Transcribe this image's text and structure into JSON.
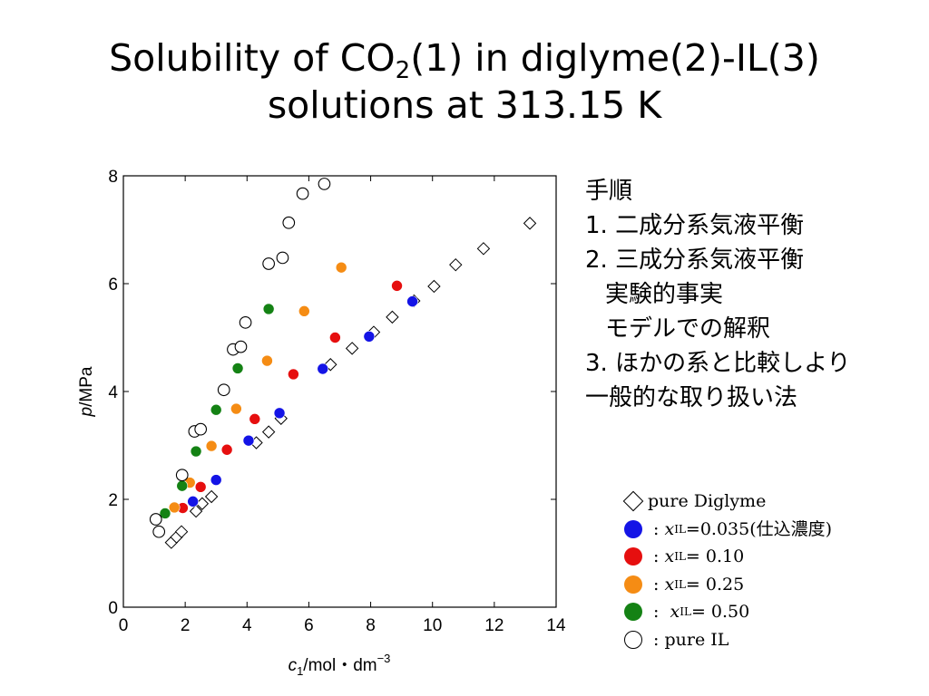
{
  "slide": {
    "title_main": "Solubility of CO",
    "title_sub": "2",
    "title_rest": "(1) in diglyme(2)-IL(3)",
    "title_line2": "solutions at 313.15 K"
  },
  "steps": [
    "手順",
    "1. 二成分系気液平衡",
    "2. 三成分系気液平衡",
    "実験的事実",
    "モデルでの解釈",
    "3. ほかの系と比較しより",
    "一般的な取り扱い法"
  ],
  "chart_data": {
    "type": "scatter",
    "x_axis": {
      "min": 0,
      "max": 14,
      "ticks": [
        0,
        2,
        4,
        6,
        8,
        10,
        12,
        14
      ],
      "label_main": "c",
      "label_sub": "1",
      "label_rest": "/mol・dm",
      "label_sup": "−3"
    },
    "y_axis": {
      "min": 0,
      "max": 8,
      "ticks": [
        0,
        2,
        4,
        6,
        8
      ],
      "label_main": "p",
      "label_rest": "/MPa"
    },
    "grid": false,
    "legend_position": "right",
    "series": [
      {
        "key": "diglyme",
        "marker": "diamond-open",
        "color": "#000000",
        "legend_prefix": "◇ : ",
        "legend_x": "",
        "legend_sub": "",
        "legend_rest": "pure Diglyme",
        "points": [
          [
            1.55,
            1.2
          ],
          [
            1.72,
            1.3
          ],
          [
            1.88,
            1.4
          ],
          [
            2.35,
            1.78
          ],
          [
            2.55,
            1.92
          ],
          [
            2.85,
            2.05
          ],
          [
            4.3,
            3.05
          ],
          [
            4.7,
            3.25
          ],
          [
            5.1,
            3.5
          ],
          [
            6.7,
            4.5
          ],
          [
            7.4,
            4.8
          ],
          [
            8.1,
            5.1
          ],
          [
            8.7,
            5.38
          ],
          [
            9.4,
            5.68
          ],
          [
            10.05,
            5.95
          ],
          [
            10.75,
            6.35
          ],
          [
            11.65,
            6.65
          ],
          [
            13.15,
            7.12
          ]
        ]
      },
      {
        "key": "x0035",
        "marker": "circle-filled",
        "color": "#1414e6",
        "legend_prefix": " : ",
        "legend_x": "x",
        "legend_sub": "IL",
        "legend_rest": " =0.035(仕込濃度)",
        "points": [
          [
            2.25,
            1.96
          ],
          [
            3.0,
            2.36
          ],
          [
            4.05,
            3.09
          ],
          [
            5.05,
            3.6
          ],
          [
            6.45,
            4.42
          ],
          [
            7.95,
            5.02
          ],
          [
            9.35,
            5.67
          ]
        ]
      },
      {
        "key": "x010",
        "marker": "circle-filled",
        "color": "#e60f0f",
        "legend_prefix": " : ",
        "legend_x": "x",
        "legend_sub": "IL",
        "legend_rest": " = 0.10",
        "points": [
          [
            1.92,
            1.84
          ],
          [
            2.5,
            2.23
          ],
          [
            3.35,
            2.92
          ],
          [
            4.25,
            3.49
          ],
          [
            5.5,
            4.32
          ],
          [
            6.85,
            5.0
          ],
          [
            8.85,
            5.96
          ]
        ]
      },
      {
        "key": "x025",
        "marker": "circle-filled",
        "color": "#f58c14",
        "legend_prefix": " : ",
        "legend_x": "x",
        "legend_sub": "IL",
        "legend_rest": " = 0.25",
        "points": [
          [
            1.65,
            1.85
          ],
          [
            2.15,
            2.31
          ],
          [
            2.85,
            2.99
          ],
          [
            3.65,
            3.68
          ],
          [
            4.65,
            4.57
          ],
          [
            5.85,
            5.49
          ],
          [
            7.05,
            6.3
          ]
        ]
      },
      {
        "key": "x050",
        "marker": "circle-filled",
        "color": "#148214",
        "legend_prefix": " : ",
        "legend_x": "x",
        "legend_sub": "IL",
        "legend_rest": " = 0.50",
        "points": [
          [
            1.35,
            1.74
          ],
          [
            1.9,
            2.25
          ],
          [
            2.35,
            2.89
          ],
          [
            3.0,
            3.66
          ],
          [
            3.7,
            4.43
          ],
          [
            4.7,
            5.53
          ]
        ]
      },
      {
        "key": "pureil",
        "marker": "circle-open",
        "color": "#000000",
        "legend_prefix": "○ : ",
        "legend_x": "",
        "legend_sub": "",
        "legend_rest": "pure IL",
        "points": [
          [
            1.05,
            1.63
          ],
          [
            1.15,
            1.4
          ],
          [
            1.9,
            2.45
          ],
          [
            2.3,
            3.26
          ],
          [
            2.5,
            3.3
          ],
          [
            3.25,
            4.03
          ],
          [
            3.55,
            4.78
          ],
          [
            3.8,
            4.83
          ],
          [
            3.95,
            5.28
          ],
          [
            4.7,
            6.37
          ],
          [
            5.15,
            6.48
          ],
          [
            5.35,
            7.13
          ],
          [
            5.8,
            7.67
          ],
          [
            6.5,
            7.85
          ]
        ]
      }
    ]
  }
}
